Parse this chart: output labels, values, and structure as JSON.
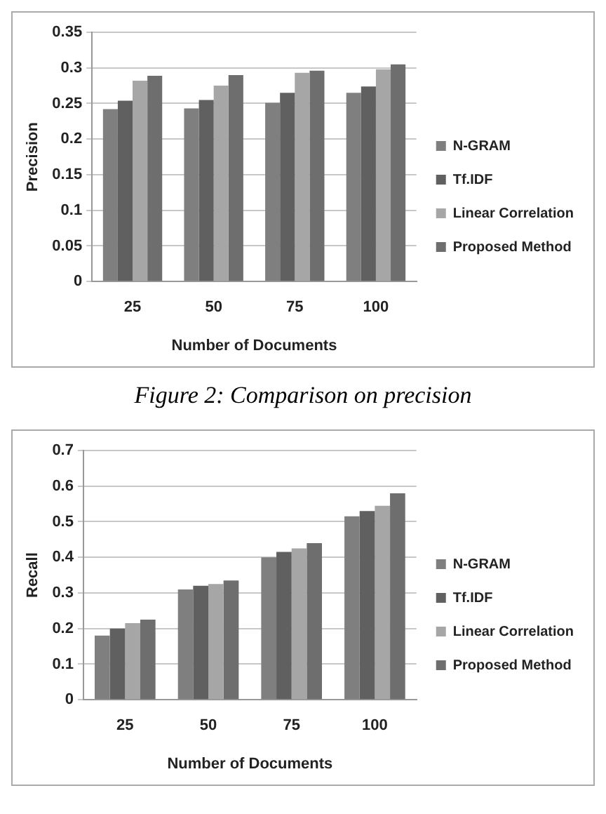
{
  "chart_data": [
    {
      "type": "bar",
      "categories": [
        "25",
        "50",
        "75",
        "100"
      ],
      "xlabel": "Number of Documents",
      "ylabel": "Precision",
      "ylim": [
        0,
        0.35
      ],
      "yticks": [
        0,
        0.05,
        0.1,
        0.15,
        0.2,
        0.25,
        0.3,
        0.35
      ],
      "grid": "y",
      "legend": "right",
      "series": [
        {
          "name": "N-GRAM",
          "color": "#7f7f7f",
          "values": [
            0.242,
            0.243,
            0.251,
            0.265
          ]
        },
        {
          "name": "Tf.IDF",
          "color": "#606060",
          "values": [
            0.254,
            0.255,
            0.265,
            0.274
          ]
        },
        {
          "name": "Linear Correlation",
          "color": "#a6a6a6",
          "values": [
            0.282,
            0.275,
            0.293,
            0.298
          ]
        },
        {
          "name": "Proposed Method",
          "color": "#6e6e6e",
          "values": [
            0.289,
            0.29,
            0.296,
            0.305
          ]
        }
      ],
      "annotations": [
        "Figure 2: Comparison on precision"
      ]
    },
    {
      "type": "bar",
      "categories": [
        "25",
        "50",
        "75",
        "100"
      ],
      "xlabel": "Number of Documents",
      "ylabel": "Recall",
      "ylim": [
        0,
        0.7
      ],
      "yticks": [
        0,
        0.1,
        0.2,
        0.3,
        0.4,
        0.5,
        0.6,
        0.7
      ],
      "grid": "y",
      "legend": "right",
      "series": [
        {
          "name": "N-GRAM",
          "color": "#7f7f7f",
          "values": [
            0.18,
            0.31,
            0.4,
            0.515
          ]
        },
        {
          "name": "Tf.IDF",
          "color": "#606060",
          "values": [
            0.2,
            0.32,
            0.415,
            0.53
          ]
        },
        {
          "name": "Linear Correlation",
          "color": "#a6a6a6",
          "values": [
            0.215,
            0.325,
            0.425,
            0.545
          ]
        },
        {
          "name": "Proposed Method",
          "color": "#6e6e6e",
          "values": [
            0.225,
            0.335,
            0.44,
            0.58
          ]
        }
      ]
    }
  ]
}
